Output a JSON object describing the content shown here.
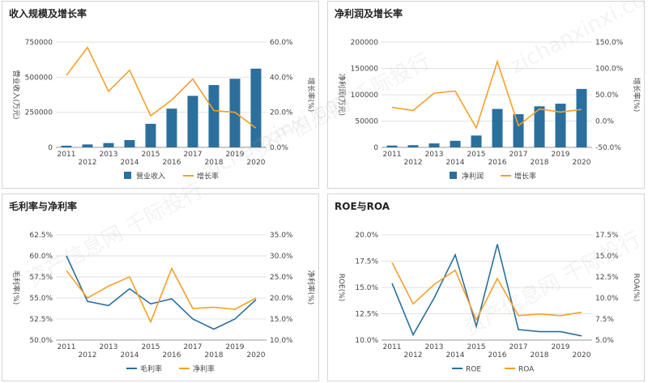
{
  "colors": {
    "bar": "#2b6f9c",
    "orange": "#f5a02c",
    "blue_line": "#2b6f9c",
    "grid": "#e2e2e2",
    "axis_text": "#444444"
  },
  "watermark": {
    "text_cn": "资产信息网 千际投行",
    "text_en": "zichanxinxi.com"
  },
  "chart_data": [
    {
      "id": "revenue",
      "type": "bar",
      "title": "收入规模及增长率",
      "categories": [
        "2011",
        "2012",
        "2013",
        "2014",
        "2015",
        "2016",
        "2017",
        "2018",
        "2019",
        "2020"
      ],
      "ylabel_left": "营业收入(万元)",
      "ylabel_right": "增长率(%)",
      "left_ticks": [
        "0",
        "250000",
        "500000",
        "750000"
      ],
      "right_ticks": [
        "0.0%",
        "20.0%",
        "40.0%",
        "60.0%"
      ],
      "ylim_left": [
        0,
        750000
      ],
      "ylim_right": [
        0,
        60
      ],
      "series": [
        {
          "name": "营业收入",
          "kind": "bar",
          "axis": "left",
          "values": [
            12000,
            21000,
            31000,
            52000,
            168000,
            276000,
            367000,
            444000,
            489000,
            561000
          ]
        },
        {
          "name": "增长率",
          "kind": "line",
          "axis": "right",
          "values": [
            41.0,
            57.0,
            32.0,
            44.0,
            18.0,
            27.0,
            39.0,
            21.0,
            20.0,
            11.0
          ]
        }
      ],
      "legend": [
        "营业收入",
        "增长率"
      ],
      "legend_position": "bottom",
      "grid": true
    },
    {
      "id": "netprofit",
      "type": "bar",
      "title": "净利润及增长率",
      "categories": [
        "2011",
        "2012",
        "2013",
        "2014",
        "2015",
        "2016",
        "2017",
        "2018",
        "2019",
        "2020"
      ],
      "ylabel_left": "净利润(万元)",
      "ylabel_right": "增长率(%)",
      "left_ticks": [
        "0",
        "50000",
        "100000",
        "150000",
        "200000"
      ],
      "right_ticks": [
        "-50.0%",
        "0.0%",
        "50.0%",
        "100.0%",
        "150.0%"
      ],
      "ylim_left": [
        0,
        200000
      ],
      "ylim_right": [
        -50,
        150
      ],
      "series": [
        {
          "name": "净利润",
          "kind": "bar",
          "axis": "left",
          "values": [
            3500,
            4200,
            7500,
            12500,
            22500,
            73000,
            63000,
            78000,
            83000,
            111000
          ]
        },
        {
          "name": "增长率",
          "kind": "line",
          "axis": "right",
          "values": [
            26,
            20,
            53,
            57,
            -13,
            113,
            -9,
            23,
            17,
            22
          ]
        }
      ],
      "legend": [
        "净利润",
        "增长率"
      ],
      "legend_position": "bottom",
      "grid": true
    },
    {
      "id": "margins",
      "type": "line",
      "title": "毛利率与净利率",
      "categories": [
        "2011",
        "2012",
        "2013",
        "2014",
        "2015",
        "2016",
        "2017",
        "2018",
        "2019",
        "2020"
      ],
      "ylabel_left": "毛利率(%)",
      "ylabel_right": "净利率(%)",
      "left_ticks": [
        "50.0%",
        "52.5%",
        "55.0%",
        "57.5%",
        "60.0%",
        "62.5%"
      ],
      "right_ticks": [
        "10.0%",
        "15.0%",
        "20.0%",
        "25.0%",
        "30.0%",
        "35.0%"
      ],
      "ylim_left": [
        50,
        62.5
      ],
      "ylim_right": [
        10,
        35
      ],
      "series": [
        {
          "name": "毛利率",
          "kind": "line",
          "axis": "left",
          "color": "blue",
          "values": [
            60.0,
            54.6,
            54.1,
            56.1,
            54.3,
            54.9,
            52.5,
            51.3,
            52.5,
            54.8
          ]
        },
        {
          "name": "净利率",
          "kind": "line",
          "axis": "right",
          "color": "orange",
          "values": [
            26.5,
            20.0,
            22.8,
            25.0,
            14.3,
            27.0,
            17.5,
            17.8,
            17.3,
            20.0
          ]
        }
      ],
      "legend": [
        "毛利率",
        "净利率"
      ],
      "legend_position": "bottom",
      "grid": true
    },
    {
      "id": "roe_roa",
      "type": "line",
      "title": "ROE与ROA",
      "categories": [
        "2011",
        "2012",
        "2013",
        "2014",
        "2015",
        "2016",
        "2017",
        "2018",
        "2019",
        "2020"
      ],
      "ylabel_left": "ROE(%)",
      "ylabel_right": "ROA(%)",
      "left_ticks": [
        "10.0%",
        "12.5%",
        "15.0%",
        "17.5%",
        "20.0%"
      ],
      "right_ticks": [
        "5.0%",
        "7.5%",
        "10.0%",
        "12.5%",
        "15.0%",
        "17.5%"
      ],
      "ylim_left": [
        10,
        20
      ],
      "ylim_right": [
        5,
        17.5
      ],
      "series": [
        {
          "name": "ROE",
          "kind": "line",
          "axis": "left",
          "color": "blue",
          "values": [
            15.4,
            10.5,
            14.0,
            18.1,
            11.3,
            19.1,
            11.0,
            10.8,
            10.8,
            10.4
          ]
        },
        {
          "name": "ROA",
          "kind": "line",
          "axis": "right",
          "color": "orange",
          "values": [
            14.2,
            9.3,
            11.6,
            13.3,
            7.4,
            12.3,
            7.9,
            8.1,
            7.9,
            8.3
          ]
        }
      ],
      "legend": [
        "ROE",
        "ROA"
      ],
      "legend_position": "bottom",
      "grid": true
    }
  ]
}
